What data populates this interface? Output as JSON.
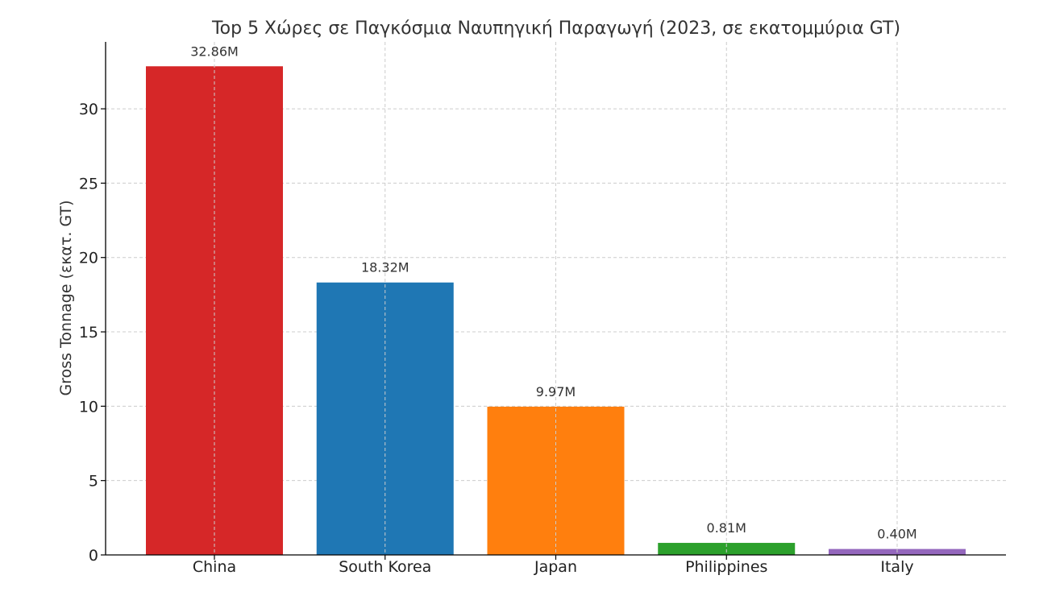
{
  "chart_data": {
    "type": "bar",
    "title": "Top 5 Χώρες σε Παγκόσμια Ναυπηγική Παραγωγή (2023, σε εκατομμύρια GT)",
    "xlabel": "",
    "ylabel": "Gross Tonnage (εκατ. GT)",
    "categories": [
      "China",
      "South Korea",
      "Japan",
      "Philippines",
      "Italy"
    ],
    "values": [
      32.86,
      18.32,
      9.97,
      0.81,
      0.4
    ],
    "data_labels": [
      "32.86M",
      "18.32M",
      "9.97M",
      "0.81M",
      "0.40M"
    ],
    "colors": [
      "#d62728",
      "#1f77b4",
      "#ff7f0e",
      "#2ca02c",
      "#9467bd"
    ],
    "ylim": [
      0,
      34.5
    ],
    "yticks": [
      0,
      5,
      10,
      15,
      20,
      25,
      30
    ],
    "grid": true,
    "legend": "none"
  }
}
